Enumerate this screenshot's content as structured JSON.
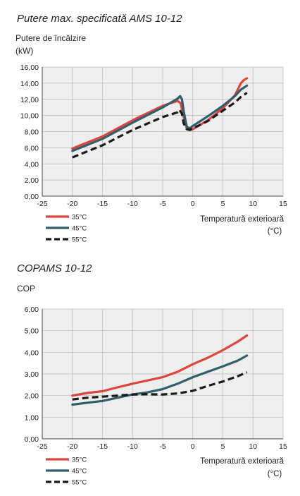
{
  "chart_data": [
    {
      "type": "line",
      "title": "Putere max. specificată AMS 10-12",
      "ylabel_line1": "Putere de încălzire",
      "ylabel_line2": "(kW)",
      "xlabel_line1": "Temperatură exterioară",
      "xlabel_line2": "(°C)",
      "xlim": [
        -25,
        15
      ],
      "ylim": [
        0,
        16
      ],
      "x_ticks": [
        -25,
        -20,
        -15,
        -10,
        -5,
        0,
        5,
        10,
        15
      ],
      "y_ticks": [
        "0,00",
        "2,00",
        "4,00",
        "6,00",
        "8,00",
        "10,00",
        "12,00",
        "14,00",
        "16,00"
      ],
      "grid": true,
      "legend_position": "bottom-left",
      "series": [
        {
          "name": "35°C",
          "color": "#e0453a",
          "dash": "solid",
          "x": [
            -20,
            -15,
            -10,
            -5,
            -2.5,
            -2.0,
            -1.5,
            -1.0,
            -0.5,
            0,
            2.5,
            5,
            7,
            8,
            8.5,
            9
          ],
          "y": [
            5.9,
            7.4,
            9.4,
            11.2,
            11.8,
            11.5,
            9.8,
            8.4,
            8.2,
            8.3,
            9.4,
            10.9,
            12.5,
            14.0,
            14.4,
            14.6
          ]
        },
        {
          "name": "45°C",
          "color": "#2e5f6e",
          "dash": "solid",
          "x": [
            -20,
            -15,
            -10,
            -5,
            -2.5,
            -2.1,
            -1.8,
            -1.5,
            -1.0,
            -0.5,
            0,
            2.5,
            5,
            7,
            8,
            9
          ],
          "y": [
            5.6,
            7.1,
            9.1,
            11.0,
            12.1,
            12.4,
            12.0,
            10.5,
            8.6,
            8.4,
            8.7,
            9.9,
            11.2,
            12.4,
            13.2,
            13.7
          ]
        },
        {
          "name": "55°C",
          "color": "#1a1a1a",
          "dash": "dashed",
          "x": [
            -20,
            -15,
            -10,
            -5,
            -2.5,
            -2.2,
            -1.8,
            -1.5,
            -1.0,
            -0.5,
            0,
            2.5,
            5,
            7,
            8,
            9
          ],
          "y": [
            4.8,
            6.3,
            8.2,
            9.8,
            10.4,
            10.7,
            10.2,
            9.0,
            8.3,
            8.2,
            8.4,
            9.3,
            10.6,
            11.6,
            12.3,
            12.8
          ]
        }
      ]
    },
    {
      "type": "line",
      "title": "COPAMS 10-12",
      "ylabel_line1": "COP",
      "xlabel_line1": "Temperatură exterioară",
      "xlabel_line2": "(°C)",
      "xlim": [
        -25,
        15
      ],
      "ylim": [
        0,
        6
      ],
      "x_ticks": [
        -25,
        -20,
        -15,
        -10,
        -5,
        0,
        5,
        10,
        15
      ],
      "y_ticks": [
        "0,00",
        "1,00",
        "2,00",
        "3,00",
        "4,00",
        "5,00",
        "6,00"
      ],
      "grid": true,
      "legend_position": "bottom-left",
      "series": [
        {
          "name": "35°C",
          "color": "#e0453a",
          "dash": "solid",
          "x": [
            -20,
            -17.5,
            -15,
            -12.5,
            -10,
            -7.5,
            -5,
            -2.5,
            0,
            2.5,
            5,
            7.5,
            9
          ],
          "y": [
            2.0,
            2.12,
            2.2,
            2.38,
            2.55,
            2.7,
            2.85,
            3.1,
            3.45,
            3.75,
            4.1,
            4.5,
            4.78
          ]
        },
        {
          "name": "45°C",
          "color": "#2e5f6e",
          "dash": "solid",
          "x": [
            -20,
            -17.5,
            -15,
            -12.5,
            -10,
            -7.5,
            -5,
            -2.5,
            0,
            2.5,
            5,
            7.5,
            9
          ],
          "y": [
            1.58,
            1.67,
            1.75,
            1.9,
            2.05,
            2.15,
            2.3,
            2.55,
            2.85,
            3.1,
            3.35,
            3.62,
            3.85
          ]
        },
        {
          "name": "55°C",
          "color": "#1a1a1a",
          "dash": "dashed",
          "x": [
            -20,
            -17.5,
            -15,
            -12.5,
            -10,
            -7.5,
            -5,
            -2.5,
            0,
            2.5,
            5,
            7.5,
            9
          ],
          "y": [
            1.82,
            1.9,
            1.95,
            2.0,
            2.05,
            2.06,
            2.05,
            2.1,
            2.22,
            2.45,
            2.65,
            2.9,
            3.08
          ]
        }
      ]
    }
  ]
}
